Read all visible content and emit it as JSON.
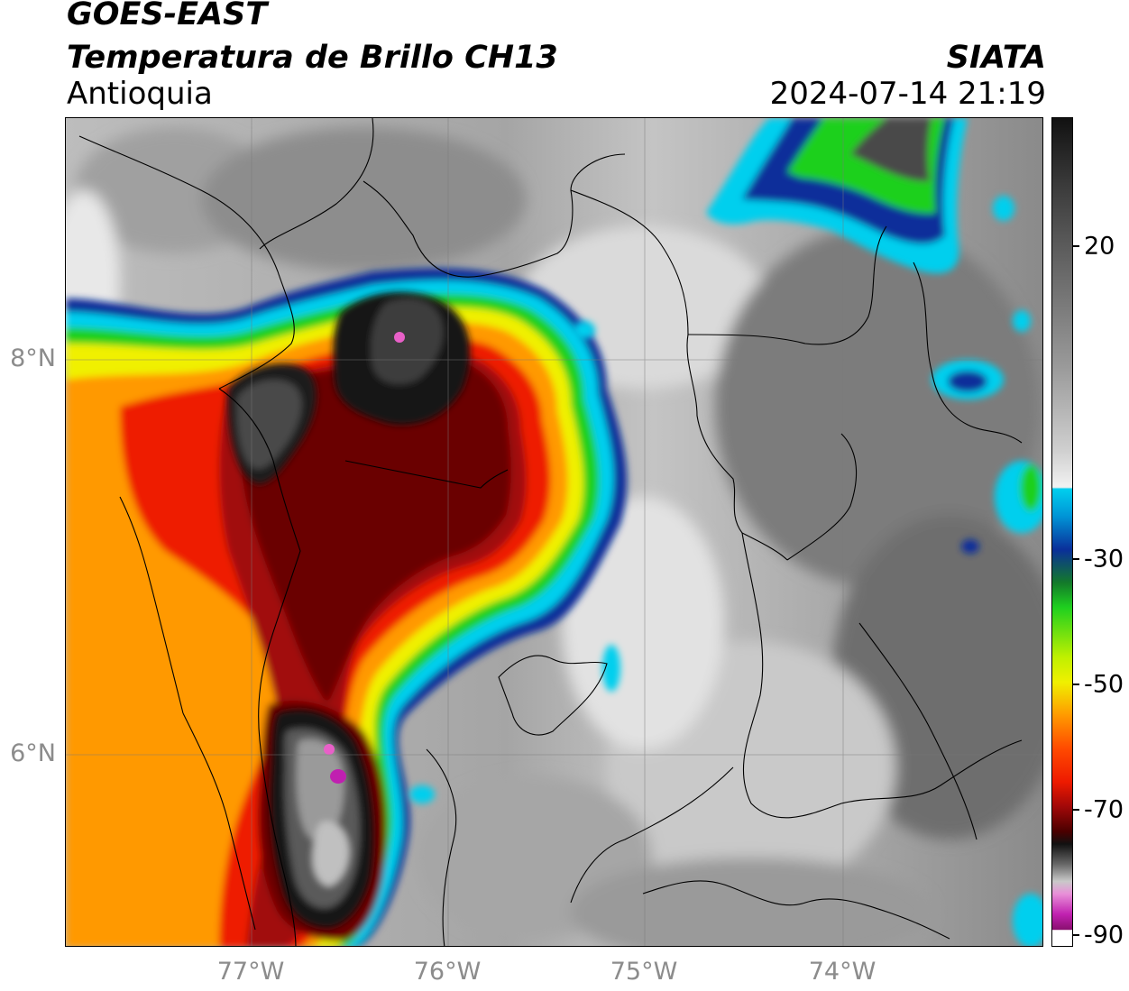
{
  "title": {
    "satellite": "GOES-EAST",
    "product": "Temperatura de Brillo CH13",
    "region": "Antioquia",
    "organization": "SIATA",
    "timestamp": "2024-07-14 21:19"
  },
  "axes": {
    "latitude_labels": [
      "8°N",
      "6°N"
    ],
    "longitude_labels": [
      "77°W",
      "76°W",
      "75°W",
      "74°W"
    ]
  },
  "colorbar": {
    "labels": [
      "20",
      "-30",
      "-50",
      "-70",
      "-90"
    ],
    "colors": {
      "warm_gray": "#f2f2f2",
      "cyan": "#00cfee",
      "blue": "#0a2f9a",
      "green": "#1fd01f",
      "yellow": "#f0f000",
      "orange": "#ff9900",
      "red": "#ee1a00",
      "dark_red": "#6a0000",
      "black": "#111111",
      "magenta": "#c020b0"
    }
  }
}
